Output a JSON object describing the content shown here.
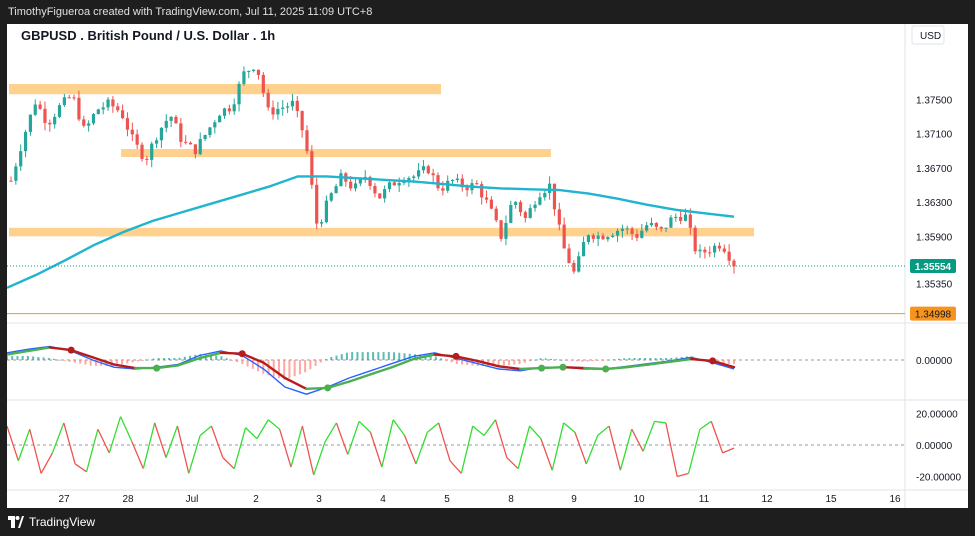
{
  "header": {
    "credit": "TimothyFigueroa created with TradingView.com, Jul 11, 2025 11:09 UTC+8"
  },
  "footer": {
    "brand": "TradingView",
    "logo_icon": "tradingview-logo-icon"
  },
  "colors": {
    "zone": "#ffc97a",
    "ema": "#1fb5cf",
    "bull": "#26a69a",
    "bear": "#ef5350",
    "macd_fast": "#2962ff",
    "signal_green": "#4caf50",
    "signal_red": "#b71c1c",
    "stoch_green": "#33dd33",
    "stoch_red": "#ef5350",
    "price_tag": "#089981",
    "alert_tag": "#f7941d"
  },
  "chart_data": {
    "type": "candlestick",
    "title": "GBPUSD . British Pound / U.S. Dollar . 1h",
    "currency": "USD",
    "x_ticks": [
      "27",
      "28",
      "Jul",
      "2",
      "3",
      "4",
      "5",
      "8",
      "9",
      "10",
      "11",
      "12",
      "15",
      "16"
    ],
    "y_ticks": [
      "1.37500",
      "1.37100",
      "1.36700",
      "1.36300",
      "1.35900",
      "1.35350"
    ],
    "ylim": [
      1.349,
      1.381
    ],
    "current_price": "1.35554",
    "alert_level": "1.34998",
    "resistance_zones": [
      {
        "from": 1.3756,
        "to": 1.3768
      },
      {
        "from": 1.3683,
        "to": 1.3692
      },
      {
        "from": 1.359,
        "to": 1.36
      }
    ],
    "close_path": [
      1.3655,
      1.3705,
      1.3748,
      1.3722,
      1.3742,
      1.3755,
      1.3712,
      1.3738,
      1.3745,
      1.3735,
      1.37,
      1.368,
      1.3712,
      1.3732,
      1.37,
      1.369,
      1.3712,
      1.3735,
      1.3742,
      1.378,
      1.3792,
      1.3735,
      1.374,
      1.3745,
      1.3705,
      1.36,
      1.3635,
      1.366,
      1.3645,
      1.3662,
      1.3635,
      1.365,
      1.366,
      1.366,
      1.367,
      1.3645,
      1.3655,
      1.3648,
      1.365,
      1.3625,
      1.359,
      1.3635,
      1.361,
      1.364,
      1.365,
      1.358,
      1.3545,
      1.3595,
      1.359,
      1.3595,
      1.36,
      1.359,
      1.3605,
      1.3595,
      1.3612,
      1.3615,
      1.3568,
      1.3575,
      1.3582,
      1.3558
    ],
    "ema_path": [
      1.353,
      1.3545,
      1.3562,
      1.358,
      1.3595,
      1.3608,
      1.3618,
      1.3628,
      1.3638,
      1.3648,
      1.366,
      1.366,
      1.3658,
      1.3656,
      1.3654,
      1.3651,
      1.3648,
      1.3646,
      1.3645,
      1.3644,
      1.364,
      1.3634,
      1.3627,
      1.3621,
      1.3617,
      1.3613
    ],
    "macd": {
      "zero_label": "0.00000",
      "macd_path": [
        0.0008,
        0.0012,
        0.0015,
        0.001,
        0.0,
        -0.0008,
        -0.001,
        -0.0008,
        -0.0005,
        0.0005,
        0.001,
        0.0005,
        -0.001,
        -0.003,
        -0.0038,
        -0.003,
        -0.002,
        -0.0012,
        -0.0004,
        0.0004,
        0.0008,
        0.0002,
        -0.0004,
        -0.001,
        -0.0012,
        -0.0008,
        -0.0008,
        -0.001,
        -0.001,
        -0.0007,
        -0.0004,
        -0.0001,
        0.0003,
        -0.0003,
        -0.001
      ],
      "signal_path": [
        0.0006,
        0.001,
        0.0014,
        0.0011,
        0.0003,
        -0.0005,
        -0.0009,
        -0.0009,
        -0.0006,
        0.0002,
        0.0008,
        0.0007,
        -0.0003,
        -0.002,
        -0.0032,
        -0.0031,
        -0.0024,
        -0.0016,
        -0.0008,
        0.0001,
        0.0006,
        0.0004,
        -0.0001,
        -0.0007,
        -0.001,
        -0.0009,
        -0.0008,
        -0.0009,
        -0.001,
        -0.0008,
        -0.0005,
        -0.0002,
        0.0001,
        -0.0001,
        -0.0008
      ]
    },
    "oscillator": {
      "y_ticks": [
        "20.00000",
        "0.00000",
        "-20.00000"
      ],
      "ylim": [
        -26,
        26
      ],
      "values": [
        12,
        -10,
        10,
        -18,
        -5,
        14,
        -12,
        -17,
        10,
        -5,
        18,
        2,
        -15,
        14,
        -8,
        12,
        -18,
        6,
        12,
        -8,
        -15,
        11,
        4,
        16,
        10,
        -14,
        12,
        -19,
        2,
        14,
        -6,
        15,
        8,
        -14,
        16,
        6,
        -12,
        8,
        14,
        -10,
        -18,
        12,
        6,
        16,
        -8,
        -15,
        12,
        4,
        -16,
        14,
        8,
        -12,
        6,
        12,
        -16,
        10,
        -4,
        15,
        14,
        -20,
        -18,
        10,
        15,
        -5,
        -2
      ]
    }
  }
}
